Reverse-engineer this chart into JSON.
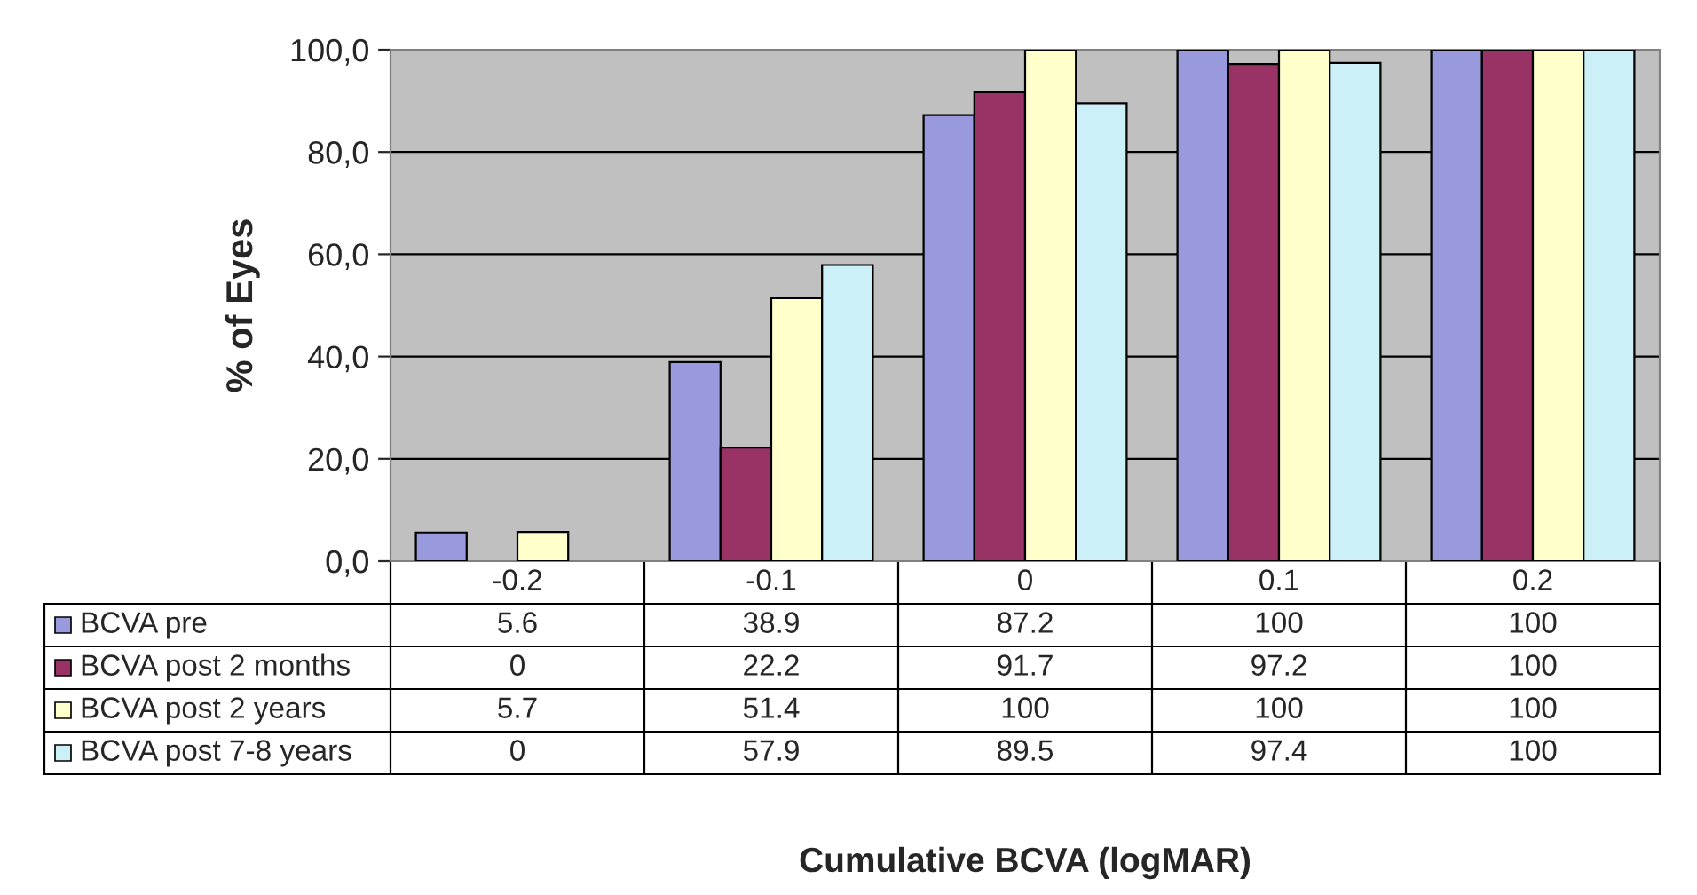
{
  "chart_data": {
    "type": "bar",
    "annotations": [
      "Cumulative BCVA (logMAR)"
    ],
    "ylabel": "% of Eyes",
    "legend": "bottom left",
    "categories": [
      "-0.2",
      "-0.1",
      "0",
      "0.1",
      "0.2"
    ],
    "series": [
      {
        "name": "BCVA pre",
        "color": "#9999dd",
        "values": [
          5.6,
          38.9,
          87.2,
          100,
          100
        ]
      },
      {
        "name": "BCVA post 2 months",
        "color": "#993366",
        "values": [
          0,
          22.2,
          91.7,
          97.2,
          100
        ]
      },
      {
        "name": "BCVA post 2 years",
        "color": "#ffffcc",
        "values": [
          5.7,
          51.4,
          100,
          100,
          100
        ]
      },
      {
        "name": "BCVA post 7-8 years",
        "color": "#ccf0f8",
        "values": [
          0,
          57.9,
          89.5,
          97.4,
          100
        ]
      }
    ],
    "ylim": [
      0,
      100
    ],
    "yticks": [
      {
        "value": 0,
        "label": "0,0"
      },
      {
        "value": 20,
        "label": "20,0"
      },
      {
        "value": 40,
        "label": "40,0"
      },
      {
        "value": 60,
        "label": "60,0"
      },
      {
        "value": 80,
        "label": "80,0"
      },
      {
        "value": 100,
        "label": "100,0"
      }
    ],
    "grid": "y",
    "data_labels": true
  }
}
